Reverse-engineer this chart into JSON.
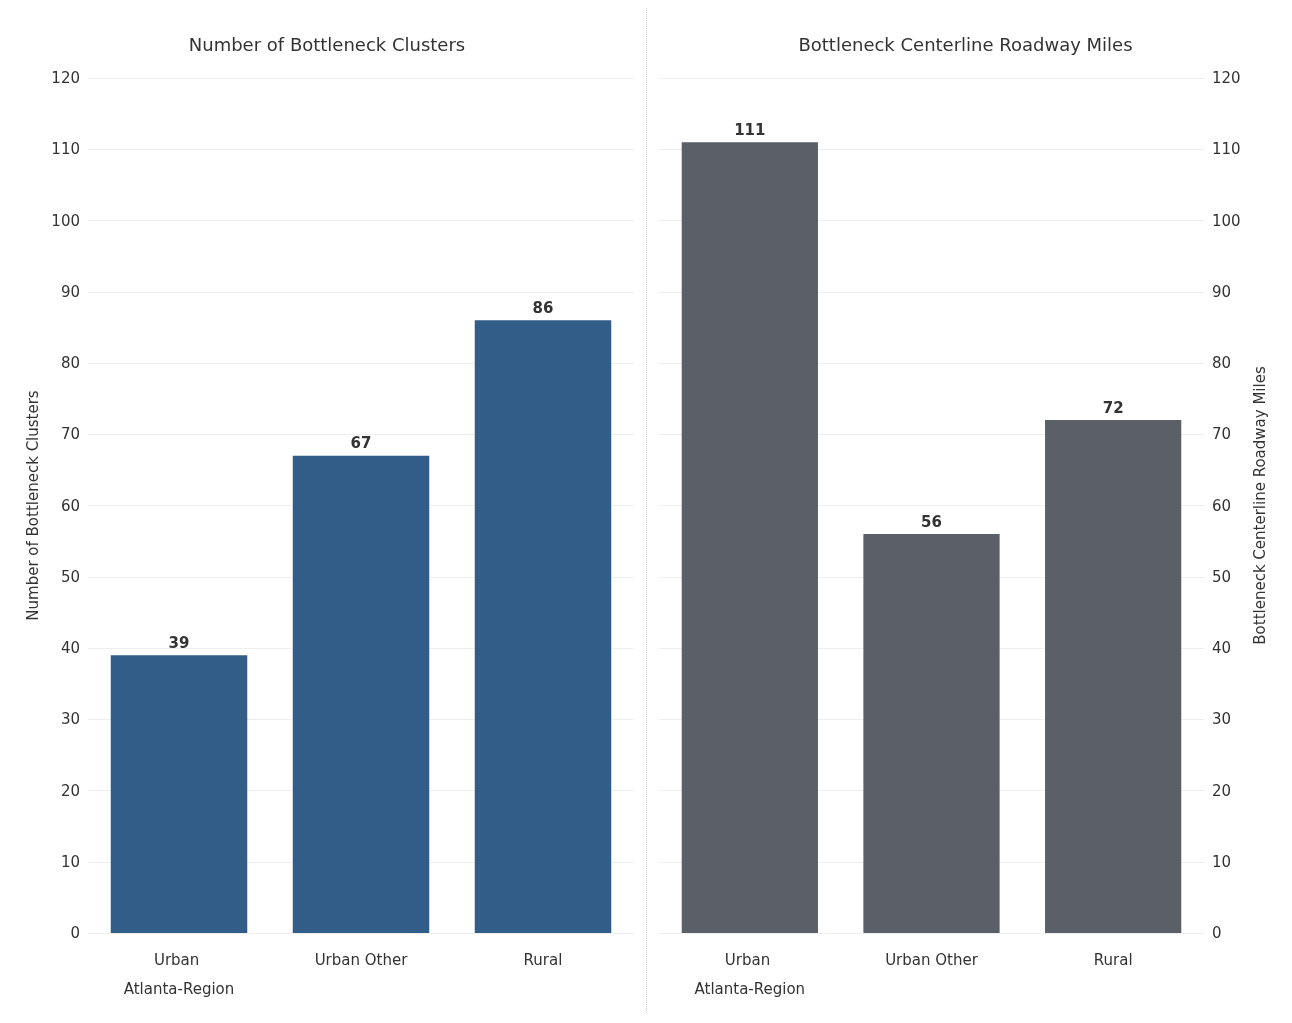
{
  "chart_data": [
    {
      "type": "bar",
      "title": "Number of Bottleneck Clusters",
      "ylabel": "Number of Bottleneck Clusters",
      "categories": [
        "Urban Atlanta-Region",
        "Urban Other",
        "Rural"
      ],
      "series": [
        {
          "color": "#335d89",
          "values": [
            39,
            67,
            86
          ]
        }
      ],
      "ylim": [
        0,
        120
      ],
      "yticks": [
        0,
        10,
        20,
        30,
        40,
        50,
        60,
        70,
        80,
        90,
        100,
        110,
        120
      ],
      "grid": "y",
      "data_labels": true
    },
    {
      "type": "bar",
      "title": "Bottleneck Centerline Roadway Miles",
      "y2label": "Bottleneck Centerline Roadway Miles",
      "categories": [
        "Urban Atlanta-Region",
        "Urban Other",
        "Rural"
      ],
      "series": [
        {
          "color": "#5b5f68",
          "values": [
            111,
            56,
            72
          ],
          "axis": "y2"
        }
      ],
      "y2lim": [
        0,
        120
      ],
      "y2ticks": [
        0,
        10,
        20,
        30,
        40,
        50,
        60,
        70,
        80,
        90,
        100,
        110,
        120
      ],
      "grid": "y",
      "data_labels": true
    }
  ]
}
